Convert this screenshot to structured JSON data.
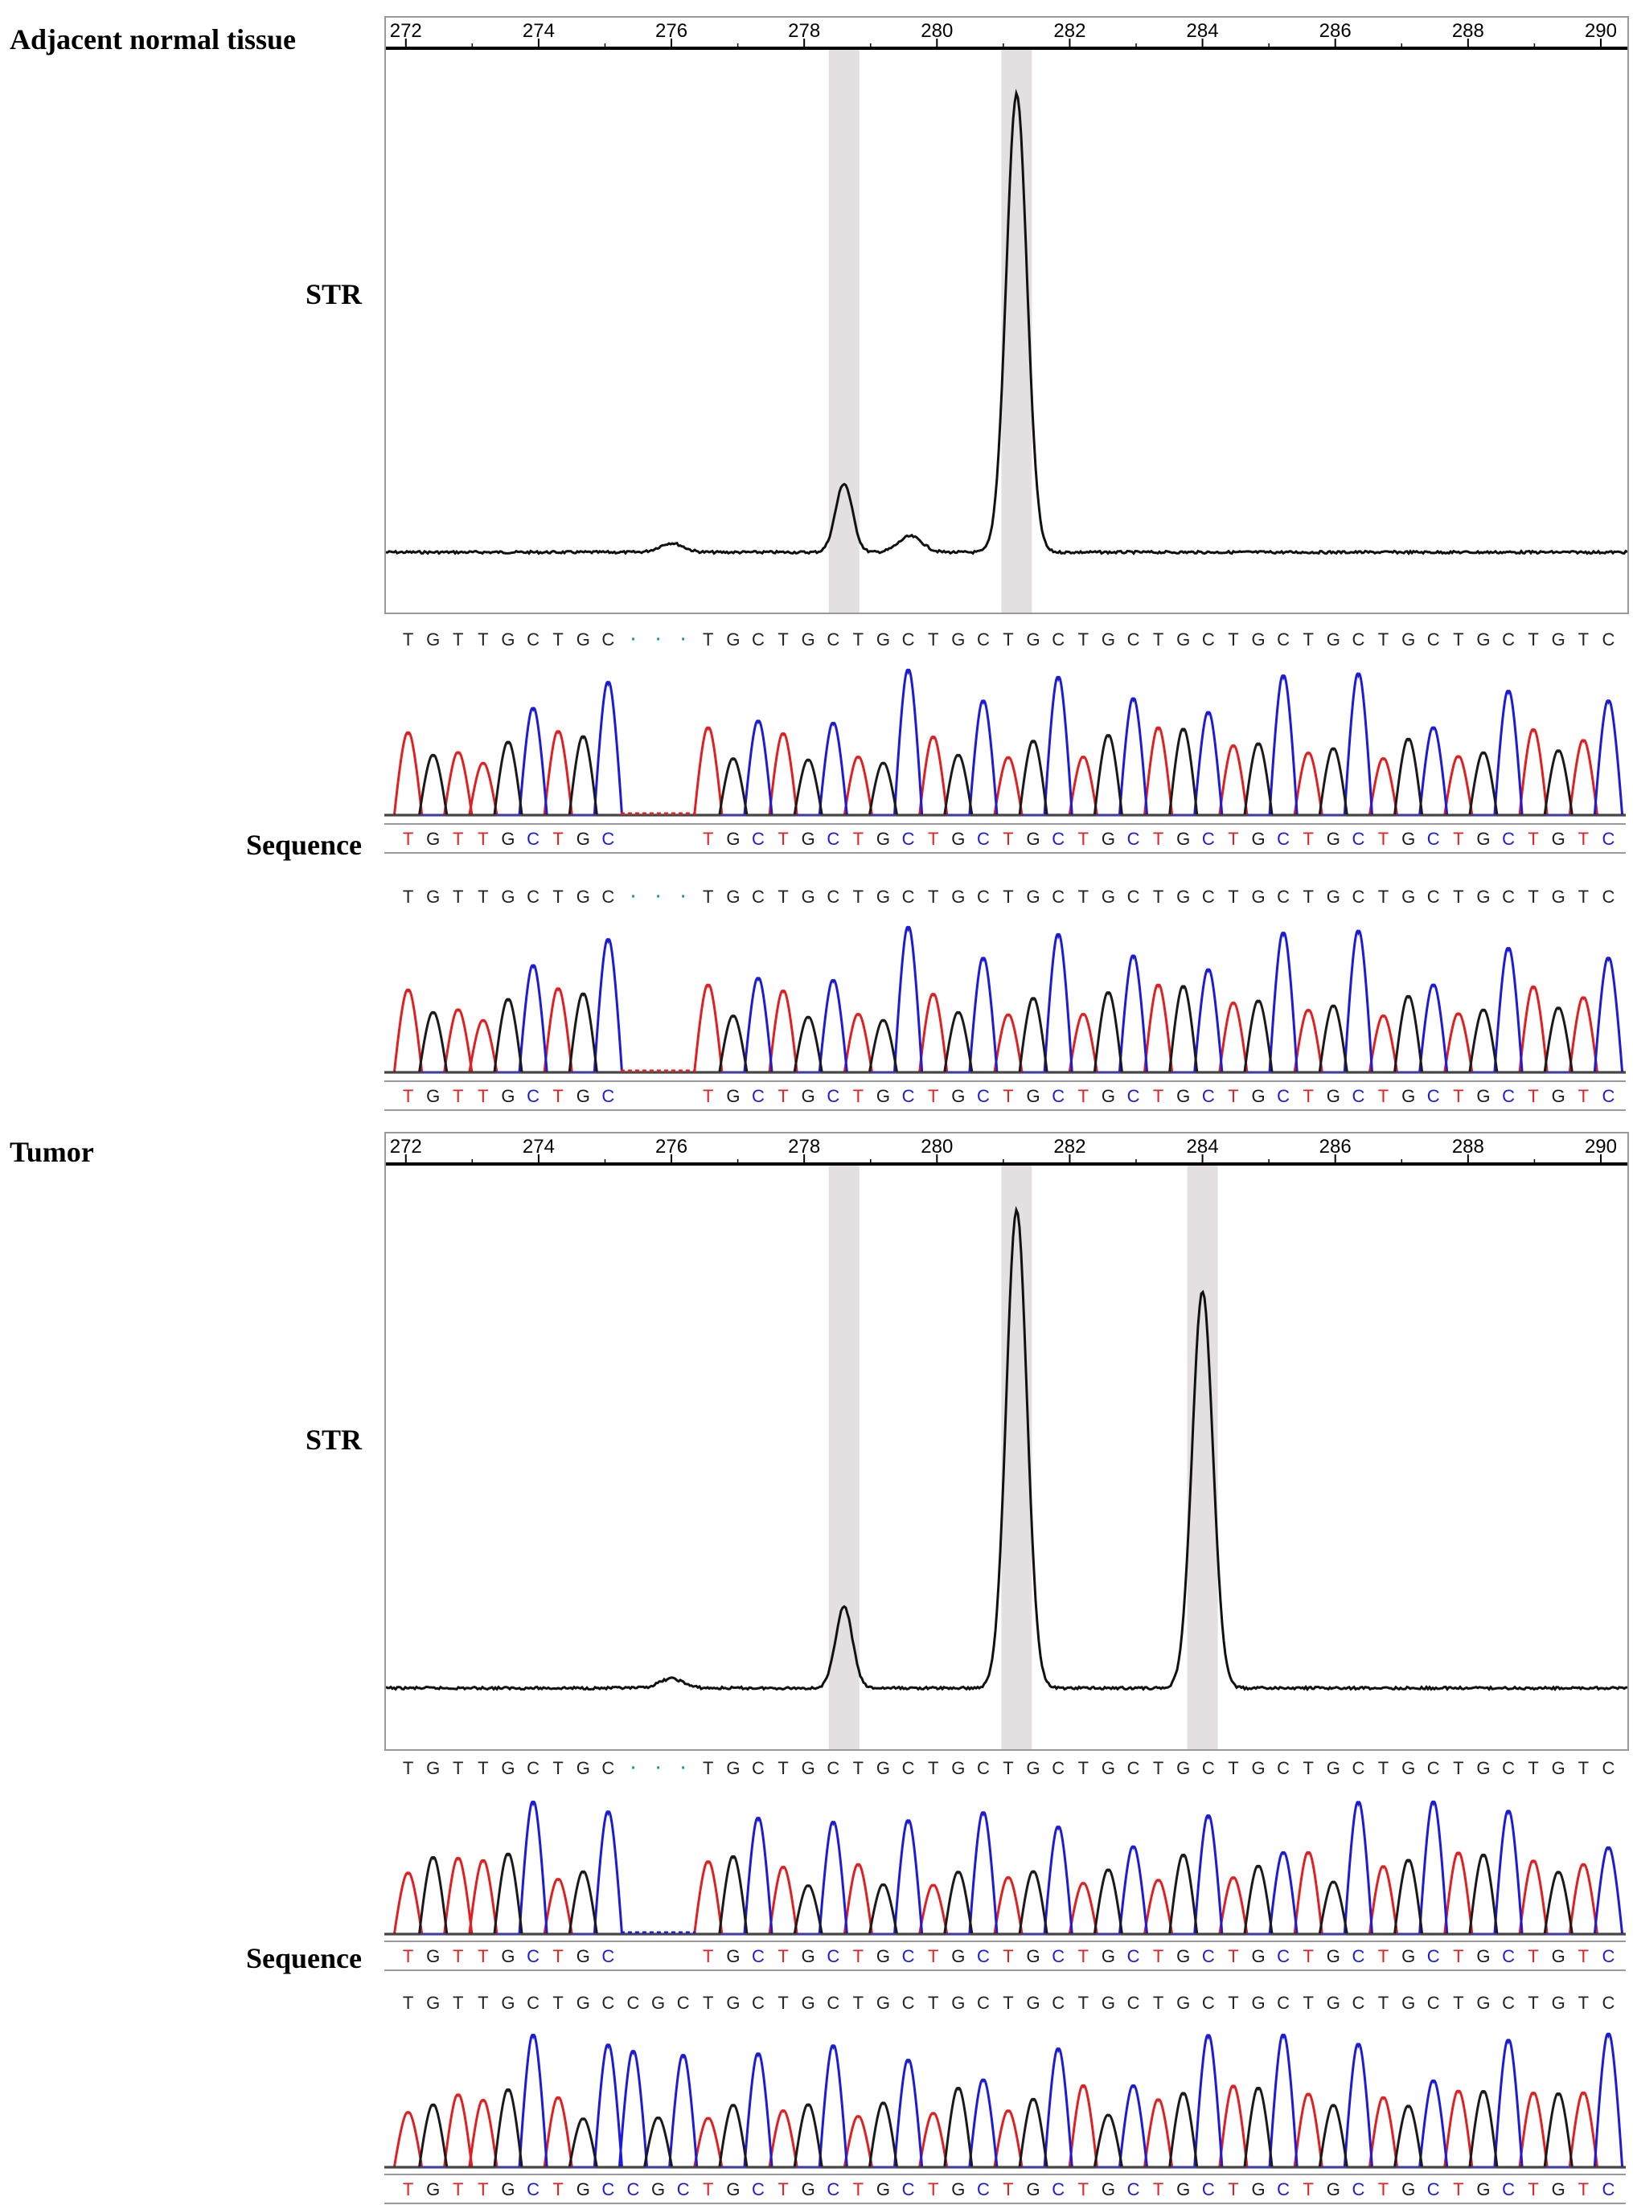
{
  "panels": [
    {
      "title": "Adjacent normal tissue",
      "str_label": "STR",
      "sequence_label": "Sequence",
      "axis_ticks": [
        "272",
        "274",
        "276",
        "278",
        "280",
        "282",
        "284",
        "286",
        "288",
        "290"
      ],
      "highlighted_sizes": [
        278.6,
        281.2
      ],
      "calls": [
        {
          "top": "TGTTGCTGC...TGCTGCTGCTGCTGCTGCTGCTGCTGCTGCTGCTGTC",
          "bottom": "TGTTGCTGC   TGCTGCTGCTGCTGCTGCTGCTGCTGCTGCTGCTGTC"
        },
        {
          "top": "TGTTGCTGC...TGCTGCTGCTGCTGCTGCTGCTGCTGCTGCTGCTGTC",
          "bottom": "TGTTGCTGC   TGCTGCTGCTGCTGCTGCTGCTGCTGCTGCTGCTGTC"
        }
      ]
    },
    {
      "title": "Tumor",
      "str_label": "STR",
      "sequence_label": "Sequence",
      "axis_ticks": [
        "272",
        "274",
        "276",
        "278",
        "280",
        "282",
        "284",
        "286",
        "288",
        "290"
      ],
      "highlighted_sizes": [
        278.6,
        281.2,
        284.0
      ],
      "calls": [
        {
          "top": "TGTTGCTGC...TGCTGCTGCTGCTGCTGCTGCTGCTGCTGCTGCTGTC",
          "bottom": "TGTTGCTGC   TGCTGCTGCTGCTGCTGCTGCTGCTGCTGCTGCTGTC"
        },
        {
          "top": "TGTTGCTGCCGCTGCTGCTGCTGCTGCTGCTGCTGCTGCTGCTGCTGTC",
          "bottom": "TGTTGCTGCCGCTGCTGCTGCTGCTGCTGCTGCTGCTGCTGCTGCTGTC"
        }
      ]
    }
  ],
  "colors": {
    "A": "#1a9a1a",
    "C": "#1c1cd8",
    "G": "#1a1a1a",
    "T": "#e02020",
    "highlight": "#e4dfe0"
  },
  "chart_data": [
    {
      "type": "line",
      "title": "Adjacent normal tissue",
      "x_ticks": [
        272,
        274,
        276,
        278,
        280,
        282,
        284,
        286,
        288,
        290
      ],
      "xlim": [
        271.7,
        290.4
      ],
      "peaks": [
        {
          "x": 276.0,
          "height": 0.02
        },
        {
          "x": 278.6,
          "height": 0.15
        },
        {
          "x": 279.6,
          "height": 0.035
        },
        {
          "x": 281.2,
          "height": 1.0
        }
      ]
    },
    {
      "type": "line",
      "title": "Tumor",
      "x_ticks": [
        272,
        274,
        276,
        278,
        280,
        282,
        284,
        286,
        288,
        290
      ],
      "xlim": [
        271.7,
        290.4
      ],
      "peaks": [
        {
          "x": 276.0,
          "height": 0.02
        },
        {
          "x": 278.6,
          "height": 0.17
        },
        {
          "x": 281.2,
          "height": 1.0
        },
        {
          "x": 284.0,
          "height": 0.83
        }
      ]
    }
  ]
}
